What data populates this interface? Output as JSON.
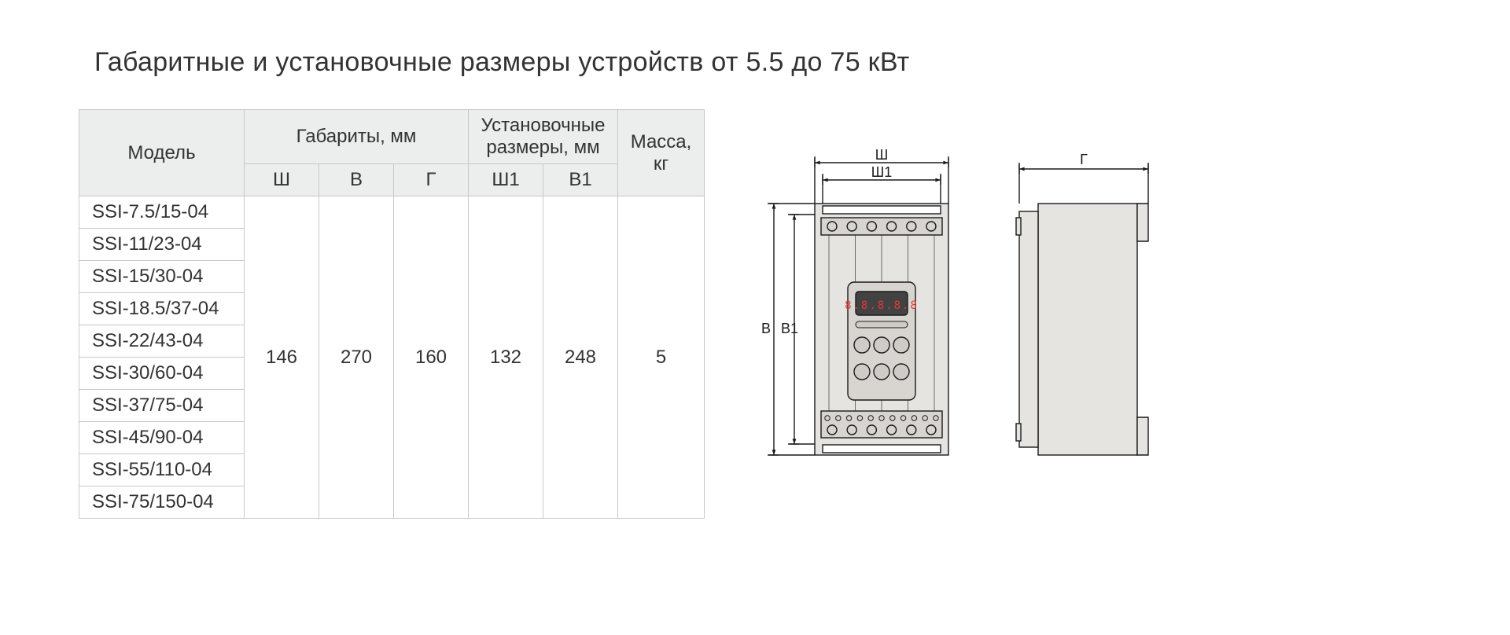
{
  "title": "Габаритные и установочные размеры устройств от 5.5 до 75 кВт",
  "table": {
    "headers": {
      "model": "Модель",
      "overall": "Габариты, мм",
      "mounting": "Установочные размеры, мм",
      "mass": "Масса, кг",
      "w": "Ш",
      "h": "В",
      "d": "Г",
      "w1": "Ш1",
      "h1": "В1"
    },
    "models": [
      "SSI-7.5/15-04",
      "SSI-11/23-04",
      "SSI-15/30-04",
      "SSI-18.5/37-04",
      "SSI-22/43-04",
      "SSI-30/60-04",
      "SSI-37/75-04",
      "SSI-45/90-04",
      "SSI-55/110-04",
      "SSI-75/150-04"
    ],
    "values": {
      "w": "146",
      "h": "270",
      "d": "160",
      "w1": "132",
      "h1": "248",
      "mass": "5"
    }
  },
  "diagram": {
    "labels": {
      "w": "Ш",
      "w1": "Ш1",
      "h": "В",
      "h1": "В1",
      "d": "Г"
    },
    "colors": {
      "stroke": "#1a1a1a",
      "fill_body": "#e6e4e1",
      "fill_panel": "#d8d5d1",
      "fill_display": "#424242",
      "digit": "#e53935"
    },
    "stroke_width": 1.4,
    "font_size": 18
  }
}
